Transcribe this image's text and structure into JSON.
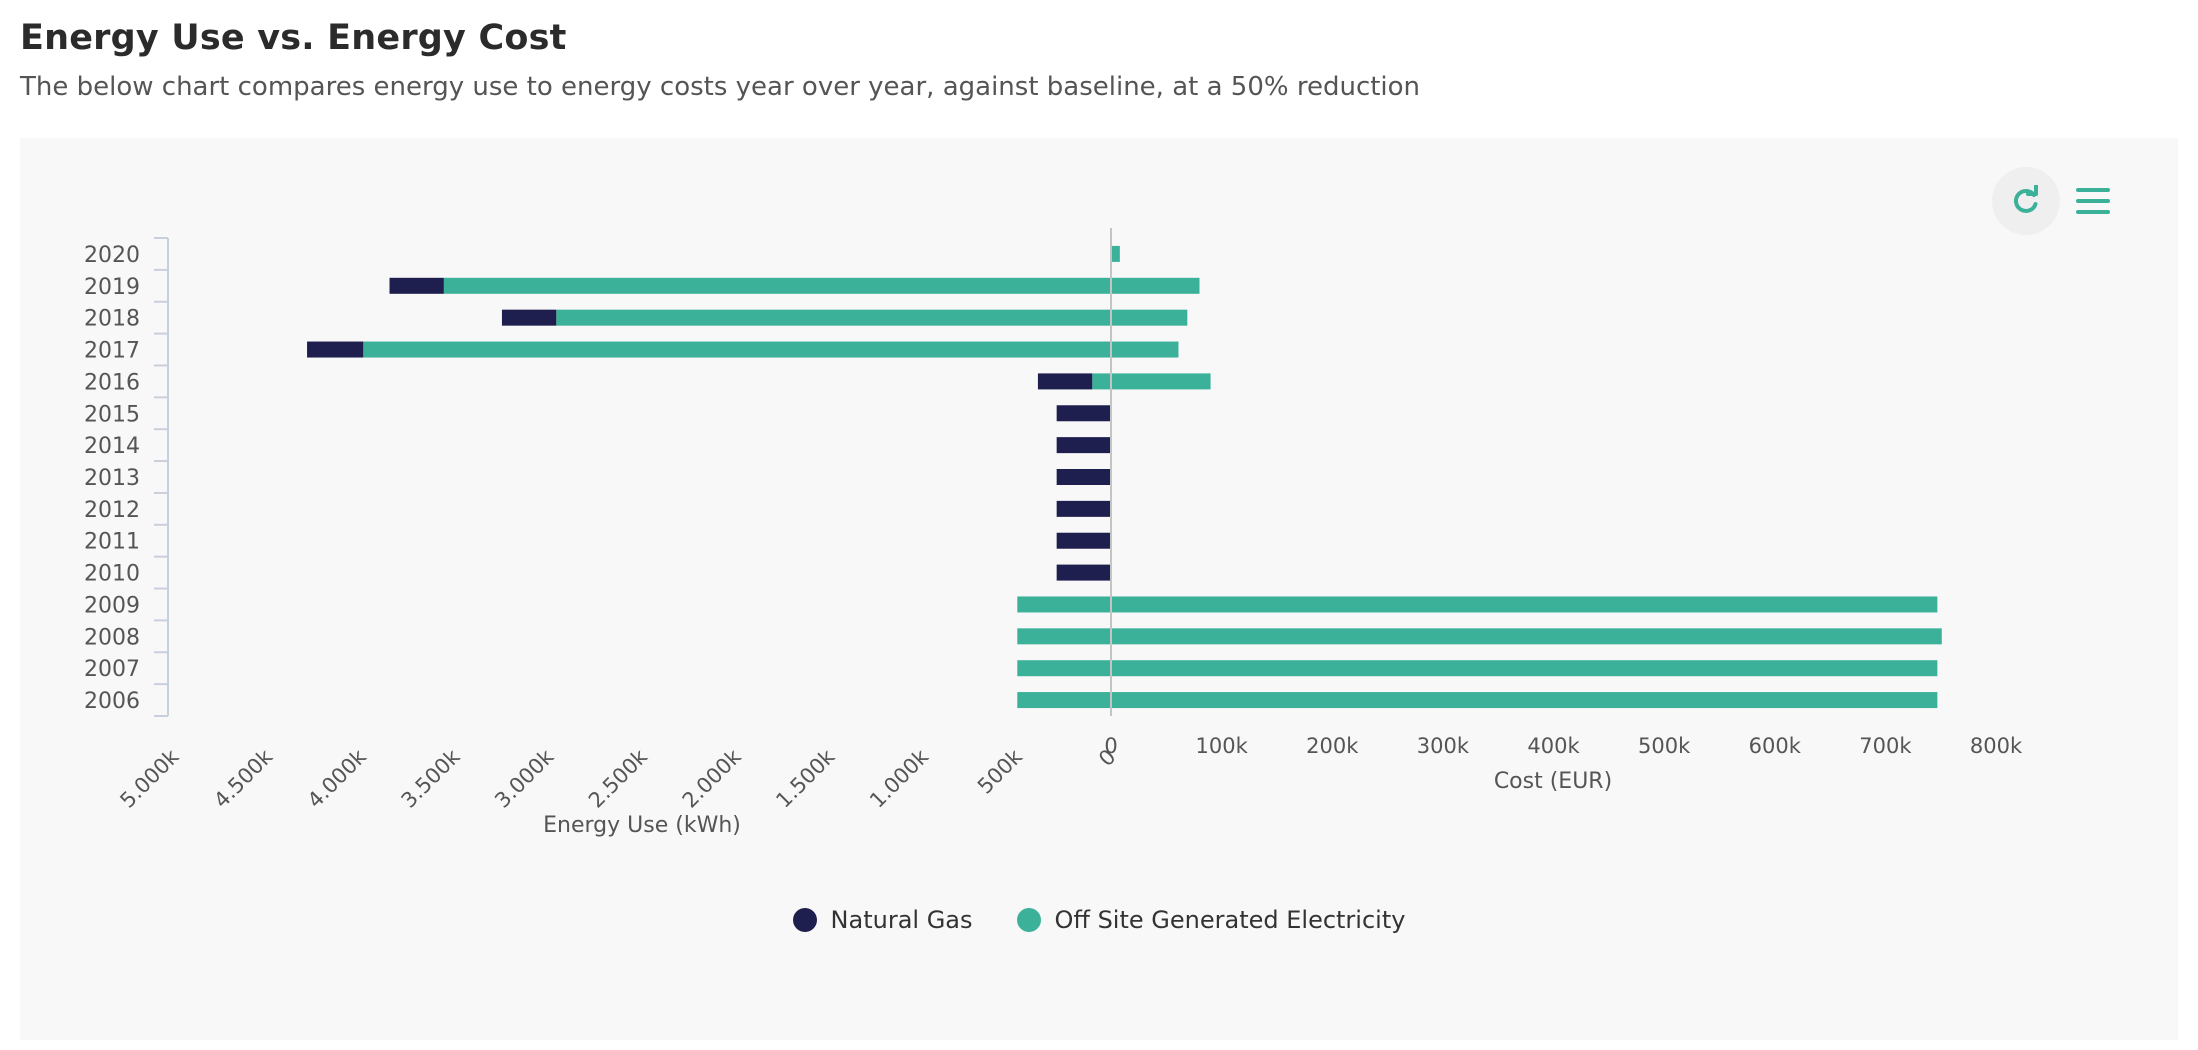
{
  "header": {
    "title": "Energy Use vs. Energy Cost",
    "subtitle": "The below chart compares energy use to energy costs year over year, against baseline, at a 50% reduction"
  },
  "toolbar": {
    "refresh_icon": "refresh-icon",
    "menu_icon": "hamburger-menu-icon"
  },
  "colors": {
    "natural_gas": "#1f1f4f",
    "electricity": "#3cb199",
    "axis": "#c8d0dc",
    "zero_line": "#c4c4c4",
    "text": "#555555"
  },
  "chart_data": {
    "type": "bar",
    "orientation": "horizontal",
    "layout": "back-to-back",
    "categories": [
      "2020",
      "2019",
      "2018",
      "2017",
      "2016",
      "2015",
      "2014",
      "2013",
      "2012",
      "2011",
      "2010",
      "2009",
      "2008",
      "2007",
      "2006"
    ],
    "energy_use": {
      "xlabel": "Energy Use (kWh)",
      "xlim": [
        0,
        5000000
      ],
      "reversed": true,
      "tick_labels": [
        "0",
        "500k",
        "1.000k",
        "1.500k",
        "2.000k",
        "2.500k",
        "3.000k",
        "3.500k",
        "4.000k",
        "4.500k",
        "5.000k"
      ],
      "tick_values": [
        0,
        500000,
        1000000,
        1500000,
        2000000,
        2500000,
        3000000,
        3500000,
        4000000,
        4500000,
        5000000
      ],
      "series": [
        {
          "name": "Off Site Generated Electricity",
          "values": [
            0,
            3560000,
            2960000,
            3990000,
            100000,
            0,
            0,
            0,
            0,
            0,
            0,
            500000,
            500000,
            500000,
            500000
          ]
        },
        {
          "name": "Natural Gas",
          "values": [
            0,
            290000,
            290000,
            300000,
            290000,
            290000,
            290000,
            290000,
            290000,
            290000,
            290000,
            0,
            0,
            0,
            0
          ]
        }
      ]
    },
    "cost": {
      "xlabel": "Cost (EUR)",
      "xlim": [
        0,
        800000
      ],
      "tick_labels": [
        "0",
        "100k",
        "200k",
        "300k",
        "400k",
        "500k",
        "600k",
        "700k",
        "800k"
      ],
      "tick_values": [
        0,
        100000,
        200000,
        300000,
        400000,
        500000,
        600000,
        700000,
        800000
      ],
      "series": [
        {
          "name": "Off Site Generated Electricity",
          "values": [
            8000,
            80000,
            69000,
            61000,
            90000,
            0,
            0,
            0,
            0,
            0,
            0,
            747000,
            751000,
            747000,
            747000
          ]
        }
      ]
    },
    "legend": {
      "position": "bottom-center",
      "items": [
        "Natural Gas",
        "Off Site Generated Electricity"
      ]
    }
  }
}
